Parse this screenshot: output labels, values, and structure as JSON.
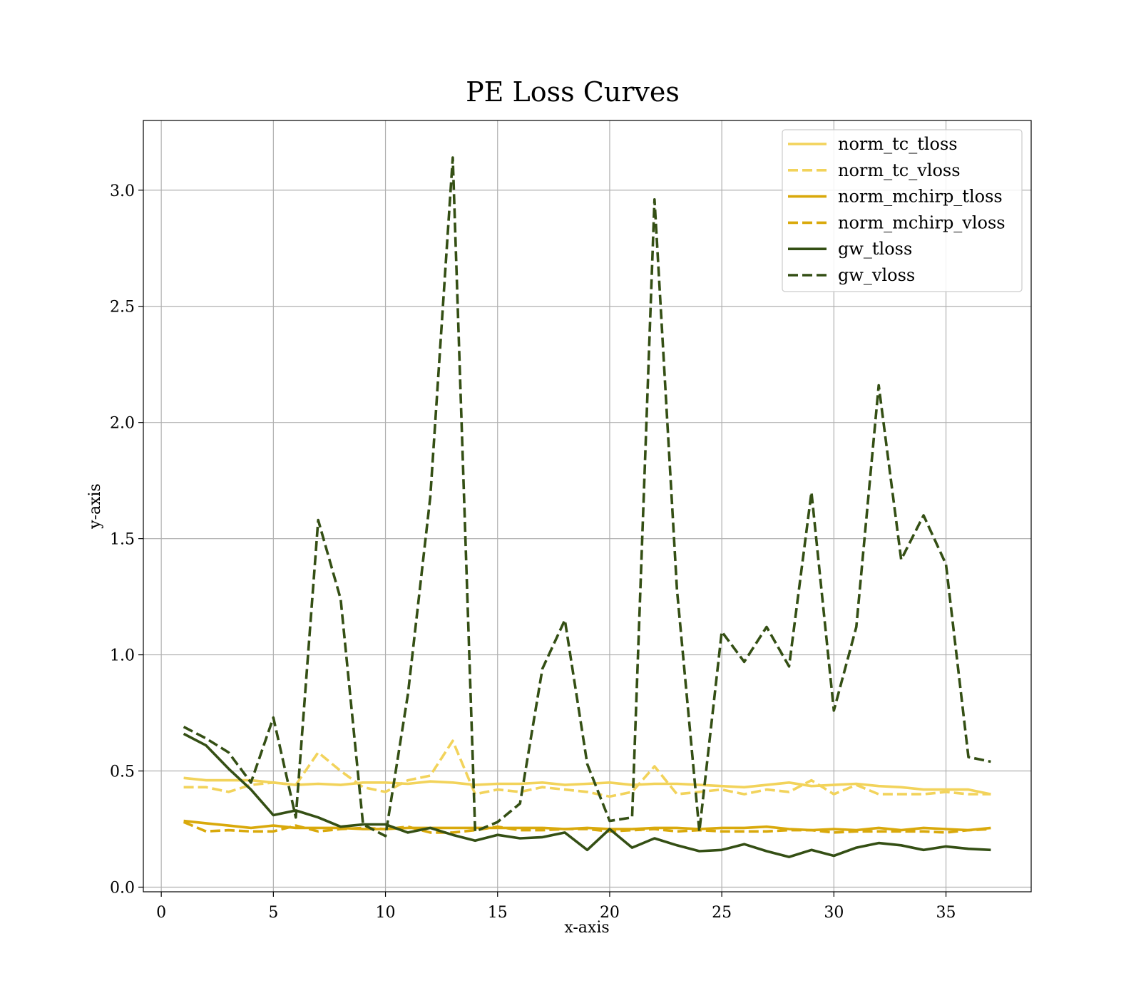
{
  "chart_data": {
    "type": "line",
    "title": "PE Loss Curves",
    "xlabel": "x-axis",
    "ylabel": "y-axis",
    "xlim": [
      -0.8,
      38.8
    ],
    "ylim": [
      -0.02,
      3.3
    ],
    "xticks": [
      0,
      5,
      10,
      15,
      20,
      25,
      30,
      35
    ],
    "yticks": [
      0.0,
      0.5,
      1.0,
      1.5,
      2.0,
      2.5,
      3.0
    ],
    "xtick_labels": [
      "0",
      "5",
      "10",
      "15",
      "20",
      "25",
      "30",
      "35"
    ],
    "ytick_labels": [
      "0.0",
      "0.5",
      "1.0",
      "1.5",
      "2.0",
      "2.5",
      "3.0"
    ],
    "grid": true,
    "legend_position": "top-right",
    "x": [
      1,
      2,
      3,
      4,
      5,
      6,
      7,
      8,
      9,
      10,
      11,
      12,
      13,
      14,
      15,
      16,
      17,
      18,
      19,
      20,
      21,
      22,
      23,
      24,
      25,
      26,
      27,
      28,
      29,
      30,
      31,
      32,
      33,
      34,
      35,
      36,
      37
    ],
    "series": [
      {
        "name": "norm_tc_tloss",
        "color": "#f2d35b",
        "dash": "solid",
        "values": [
          0.47,
          0.46,
          0.46,
          0.46,
          0.45,
          0.44,
          0.445,
          0.44,
          0.45,
          0.45,
          0.445,
          0.455,
          0.45,
          0.44,
          0.445,
          0.445,
          0.45,
          0.44,
          0.445,
          0.45,
          0.44,
          0.445,
          0.445,
          0.44,
          0.435,
          0.43,
          0.44,
          0.45,
          0.435,
          0.44,
          0.445,
          0.435,
          0.43,
          0.42,
          0.42,
          0.42,
          0.4
        ]
      },
      {
        "name": "norm_tc_vloss",
        "color": "#f2d35b",
        "dash": "dashed",
        "values": [
          0.43,
          0.43,
          0.41,
          0.44,
          0.45,
          0.44,
          0.58,
          0.5,
          0.43,
          0.41,
          0.46,
          0.48,
          0.63,
          0.4,
          0.42,
          0.41,
          0.43,
          0.42,
          0.41,
          0.39,
          0.41,
          0.52,
          0.4,
          0.41,
          0.42,
          0.4,
          0.42,
          0.41,
          0.46,
          0.4,
          0.44,
          0.4,
          0.4,
          0.4,
          0.41,
          0.4,
          0.4
        ]
      },
      {
        "name": "norm_mchirp_tloss",
        "color": "#d9a90b",
        "dash": "solid",
        "values": [
          0.285,
          0.275,
          0.265,
          0.255,
          0.265,
          0.255,
          0.255,
          0.255,
          0.25,
          0.25,
          0.255,
          0.255,
          0.255,
          0.255,
          0.255,
          0.255,
          0.255,
          0.25,
          0.255,
          0.25,
          0.25,
          0.255,
          0.255,
          0.25,
          0.255,
          0.255,
          0.26,
          0.25,
          0.245,
          0.25,
          0.245,
          0.255,
          0.245,
          0.255,
          0.25,
          0.245,
          0.255
        ]
      },
      {
        "name": "norm_mchirp_vloss",
        "color": "#d9a90b",
        "dash": "dashed",
        "values": [
          0.28,
          0.24,
          0.245,
          0.24,
          0.24,
          0.265,
          0.24,
          0.25,
          0.255,
          0.25,
          0.26,
          0.235,
          0.235,
          0.245,
          0.26,
          0.245,
          0.245,
          0.25,
          0.25,
          0.24,
          0.245,
          0.25,
          0.24,
          0.245,
          0.24,
          0.24,
          0.24,
          0.245,
          0.245,
          0.235,
          0.24,
          0.24,
          0.24,
          0.24,
          0.235,
          0.245,
          0.25
        ]
      },
      {
        "name": "gw_tloss",
        "color": "#344f14",
        "dash": "solid",
        "values": [
          0.66,
          0.61,
          0.51,
          0.42,
          0.31,
          0.33,
          0.3,
          0.26,
          0.27,
          0.27,
          0.235,
          0.255,
          0.225,
          0.2,
          0.225,
          0.21,
          0.215,
          0.235,
          0.16,
          0.25,
          0.17,
          0.21,
          0.18,
          0.155,
          0.16,
          0.185,
          0.155,
          0.13,
          0.16,
          0.135,
          0.17,
          0.19,
          0.18,
          0.16,
          0.175,
          0.165,
          0.16
        ]
      },
      {
        "name": "gw_vloss",
        "color": "#344f14",
        "dash": "dashed",
        "values": [
          0.69,
          0.64,
          0.58,
          0.45,
          0.73,
          0.3,
          1.58,
          1.24,
          0.27,
          0.22,
          0.83,
          1.68,
          3.14,
          0.24,
          0.28,
          0.36,
          0.94,
          1.15,
          0.53,
          0.285,
          0.3,
          2.96,
          1.28,
          0.24,
          1.1,
          0.97,
          1.12,
          0.95,
          1.7,
          0.76,
          1.12,
          2.16,
          1.41,
          1.6,
          1.39,
          0.56,
          0.54
        ]
      }
    ]
  }
}
